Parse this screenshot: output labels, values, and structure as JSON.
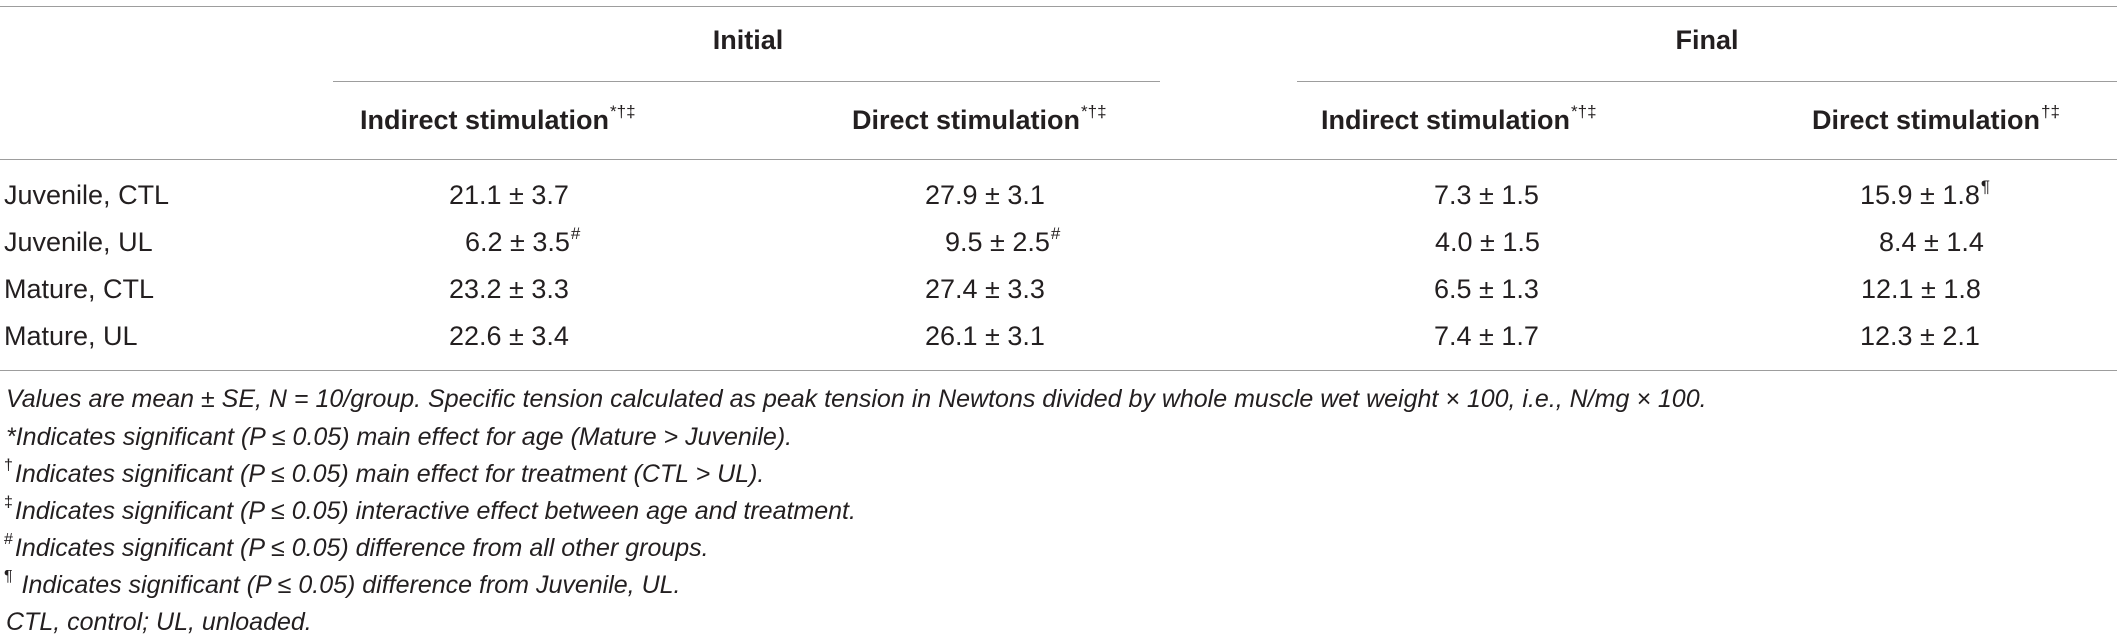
{
  "table": {
    "groups": [
      "Initial",
      "Final"
    ],
    "columns": [
      {
        "label": "Indirect stimulation",
        "marks": "*†‡"
      },
      {
        "label": "Direct stimulation",
        "marks": "*†‡"
      },
      {
        "label": "Indirect stimulation",
        "marks": "*†‡"
      },
      {
        "label": "Direct stimulation",
        "marks": "†‡"
      }
    ],
    "rows": [
      {
        "label": "Juvenile, CTL",
        "cells": [
          {
            "value": "21.1 ± 3.7",
            "mark": ""
          },
          {
            "value": "27.9 ± 3.1",
            "mark": ""
          },
          {
            "value": "7.3 ± 1.5",
            "mark": ""
          },
          {
            "value": "15.9 ± 1.8",
            "mark": "¶"
          }
        ]
      },
      {
        "label": "Juvenile, UL",
        "cells": [
          {
            "value": "6.2 ± 3.5",
            "mark": "#"
          },
          {
            "value": "9.5 ± 2.5",
            "mark": "#"
          },
          {
            "value": "4.0 ± 1.5",
            "mark": ""
          },
          {
            "value": "8.4 ± 1.4",
            "mark": ""
          }
        ]
      },
      {
        "label": "Mature, CTL",
        "cells": [
          {
            "value": "23.2 ± 3.3",
            "mark": ""
          },
          {
            "value": "27.4 ± 3.3",
            "mark": ""
          },
          {
            "value": "6.5 ± 1.3",
            "mark": ""
          },
          {
            "value": "12.1 ± 1.8",
            "mark": ""
          }
        ]
      },
      {
        "label": "Mature, UL",
        "cells": [
          {
            "value": "22.6 ± 3.4",
            "mark": ""
          },
          {
            "value": "26.1 ± 3.1",
            "mark": ""
          },
          {
            "value": "7.4 ± 1.7",
            "mark": ""
          },
          {
            "value": "12.3 ± 2.1",
            "mark": ""
          }
        ]
      }
    ]
  },
  "footnotes": [
    {
      "mark": "",
      "text": "Values are mean ± SE, N = 10/group. Specific tension calculated as peak tension in Newtons divided by whole muscle wet weight × 100, i.e., N/mg × 100."
    },
    {
      "mark": "",
      "text": "*Indicates significant (P ≤ 0.05) main effect for age (Mature > Juvenile)."
    },
    {
      "mark": "†",
      "text": "Indicates significant (P ≤ 0.05) main effect for treatment (CTL > UL)."
    },
    {
      "mark": "‡",
      "text": "Indicates significant (P ≤ 0.05) interactive effect between age and treatment."
    },
    {
      "mark": "#",
      "text": "Indicates significant (P ≤ 0.05) difference from all other groups."
    },
    {
      "mark": "¶",
      "text": " Indicates significant (P ≤ 0.05) difference from Juvenile, UL."
    },
    {
      "mark": "",
      "text": "CTL, control; UL, unloaded."
    }
  ]
}
